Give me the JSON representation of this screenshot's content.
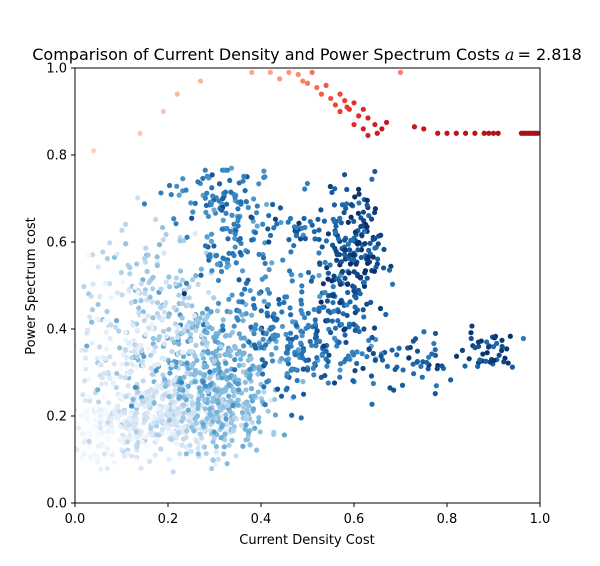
{
  "chart_data": {
    "type": "scatter",
    "title": "Comparison of Current Density and Power Spectrum Costs",
    "title_param_symbol": "a",
    "title_param_value": "= 2.818",
    "xlabel": "Current Density Cost",
    "ylabel": "Power Spectrum cost",
    "xlim": [
      0,
      1
    ],
    "ylim": [
      0,
      1
    ],
    "xticks": [
      "0.0",
      "0.2",
      "0.4",
      "0.6",
      "0.8",
      "1.0"
    ],
    "yticks": [
      "0.0",
      "0.2",
      "0.4",
      "0.6",
      "0.8",
      "1.0"
    ],
    "grid": false,
    "legend": "none",
    "colormaps": {
      "blue_series": [
        "#f7fbff",
        "#c6dbef",
        "#6baed6",
        "#2171b5",
        "#08306b"
      ],
      "red_series": [
        "#fee0d2",
        "#fc9272",
        "#ef3b2c",
        "#cb181d",
        "#a50f15"
      ]
    },
    "series": [
      {
        "color_scale": "blue_series",
        "clusters": [
          {
            "cx": 0.06,
            "cy": 0.16,
            "sx": 0.05,
            "sy": 0.05,
            "n": 160,
            "c": 0.03
          },
          {
            "cx": 0.2,
            "cy": 0.2,
            "sx": 0.07,
            "sy": 0.045,
            "n": 380,
            "c": 0.18
          },
          {
            "cx": 0.32,
            "cy": 0.21,
            "sx": 0.05,
            "sy": 0.05,
            "n": 220,
            "c": 0.4
          },
          {
            "cx": 0.3,
            "cy": 0.33,
            "sx": 0.07,
            "sy": 0.07,
            "n": 260,
            "c": 0.5
          },
          {
            "cx": 0.18,
            "cy": 0.45,
            "sx": 0.08,
            "sy": 0.09,
            "n": 200,
            "c": 0.3
          },
          {
            "cx": 0.1,
            "cy": 0.35,
            "sx": 0.05,
            "sy": 0.1,
            "n": 110,
            "c": 0.12
          },
          {
            "cx": 0.34,
            "cy": 0.62,
            "sx": 0.05,
            "sy": 0.07,
            "n": 130,
            "c": 0.68
          },
          {
            "cx": 0.48,
            "cy": 0.38,
            "sx": 0.07,
            "sy": 0.06,
            "n": 200,
            "c": 0.72
          },
          {
            "cx": 0.58,
            "cy": 0.55,
            "sx": 0.04,
            "sy": 0.08,
            "n": 160,
            "c": 0.85
          },
          {
            "cx": 0.62,
            "cy": 0.6,
            "sx": 0.02,
            "sy": 0.07,
            "n": 60,
            "c": 0.95
          },
          {
            "cx": 0.7,
            "cy": 0.33,
            "sx": 0.08,
            "sy": 0.04,
            "n": 70,
            "c": 0.8
          },
          {
            "cx": 0.88,
            "cy": 0.35,
            "sx": 0.04,
            "sy": 0.025,
            "n": 40,
            "c": 0.92
          },
          {
            "cx": 0.3,
            "cy": 0.7,
            "sx": 0.06,
            "sy": 0.04,
            "n": 50,
            "c": 0.72
          },
          {
            "cx": 0.5,
            "cy": 0.63,
            "sx": 0.04,
            "sy": 0.05,
            "n": 40,
            "c": 0.78
          }
        ]
      },
      {
        "color_scale": "red_series",
        "points": [
          [
            0.04,
            0.81,
            0.05
          ],
          [
            0.14,
            0.85,
            0.08
          ],
          [
            0.19,
            0.9,
            0.1
          ],
          [
            0.22,
            0.94,
            0.12
          ],
          [
            0.27,
            0.97,
            0.14
          ],
          [
            0.38,
            0.99,
            0.18
          ],
          [
            0.44,
            0.975,
            0.22
          ],
          [
            0.46,
            0.99,
            0.24
          ],
          [
            0.48,
            0.985,
            0.27
          ],
          [
            0.49,
            0.97,
            0.3
          ],
          [
            0.5,
            0.965,
            0.32
          ],
          [
            0.51,
            0.99,
            0.34
          ],
          [
            0.52,
            0.955,
            0.36
          ],
          [
            0.53,
            0.94,
            0.4
          ],
          [
            0.55,
            0.93,
            0.44
          ],
          [
            0.56,
            0.915,
            0.48
          ],
          [
            0.57,
            0.9,
            0.52
          ],
          [
            0.58,
            0.925,
            0.5
          ],
          [
            0.59,
            0.905,
            0.55
          ],
          [
            0.6,
            0.92,
            0.58
          ],
          [
            0.61,
            0.89,
            0.6
          ],
          [
            0.62,
            0.905,
            0.62
          ],
          [
            0.63,
            0.885,
            0.65
          ],
          [
            0.6,
            0.87,
            0.63
          ],
          [
            0.62,
            0.86,
            0.68
          ],
          [
            0.63,
            0.845,
            0.7
          ],
          [
            0.645,
            0.87,
            0.72
          ],
          [
            0.65,
            0.85,
            0.74
          ],
          [
            0.66,
            0.86,
            0.75
          ],
          [
            0.67,
            0.875,
            0.76
          ],
          [
            0.7,
            0.99,
            0.3
          ],
          [
            0.54,
            0.96,
            0.42
          ],
          [
            0.73,
            0.865,
            0.78
          ],
          [
            0.75,
            0.86,
            0.8
          ],
          [
            0.78,
            0.85,
            0.82
          ],
          [
            0.8,
            0.85,
            0.84
          ],
          [
            0.82,
            0.85,
            0.86
          ],
          [
            0.84,
            0.85,
            0.87
          ],
          [
            0.86,
            0.85,
            0.88
          ],
          [
            0.88,
            0.85,
            0.9
          ],
          [
            0.89,
            0.85,
            0.91
          ],
          [
            0.9,
            0.85,
            0.92
          ],
          [
            0.91,
            0.85,
            0.93
          ],
          [
            0.96,
            0.85,
            0.95
          ],
          [
            0.965,
            0.85,
            0.96
          ],
          [
            0.97,
            0.85,
            0.965
          ],
          [
            0.975,
            0.85,
            0.97
          ],
          [
            0.98,
            0.85,
            0.975
          ],
          [
            0.985,
            0.85,
            0.98
          ],
          [
            0.99,
            0.85,
            0.99
          ],
          [
            0.995,
            0.85,
            1.0
          ],
          [
            0.42,
            0.99,
            0.2
          ],
          [
            0.57,
            0.94,
            0.47
          ],
          [
            0.585,
            0.91,
            0.53
          ]
        ]
      }
    ]
  }
}
